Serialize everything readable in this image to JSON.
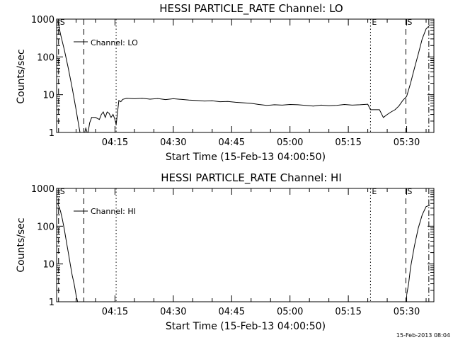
{
  "footer": {
    "timestamp": "15-Feb-2013 08:04"
  },
  "chart_data": [
    {
      "type": "line",
      "title": "HESSI PARTICLE_RATE Channel: LO",
      "xlabel": "Start Time (15-Feb-13 04:00:50)",
      "ylabel": "Counts/sec",
      "yscale": "log",
      "ylim": [
        1,
        1000
      ],
      "xlim_min": [
        0,
        97
      ],
      "x_ticks": [
        {
          "min": 15,
          "label": "04:15"
        },
        {
          "min": 30,
          "label": "04:30"
        },
        {
          "min": 45,
          "label": "04:45"
        },
        {
          "min": 60,
          "label": "05:00"
        },
        {
          "min": 75,
          "label": "05:15"
        },
        {
          "min": 90,
          "label": "05:30"
        }
      ],
      "y_ticks": [
        {
          "v": 1,
          "label": "1"
        },
        {
          "v": 10,
          "label": "10"
        },
        {
          "v": 100,
          "label": "100"
        },
        {
          "v": 1000,
          "label": "1000"
        }
      ],
      "legend": "Channel: LO",
      "markers": [
        {
          "min": 0.5,
          "style": "dashed",
          "label": "S"
        },
        {
          "min": 7,
          "style": "dashed",
          "label": ""
        },
        {
          "min": 15.3,
          "style": "dotted",
          "label": ""
        },
        {
          "min": 80.7,
          "style": "dotted",
          "label": "E"
        },
        {
          "min": 89.8,
          "style": "dashed",
          "label": "S"
        },
        {
          "min": 95.7,
          "style": "dashdot",
          "label": ""
        }
      ],
      "series": [
        {
          "x": [
            0.3,
            1,
            2,
            3,
            4,
            5,
            5.5,
            6,
            6.5,
            7,
            7.5,
            8,
            8.5,
            9,
            10,
            11,
            11.5,
            12,
            12.5,
            13,
            13.5,
            14,
            14.5,
            15,
            15.3,
            16,
            16.5,
            17,
            18,
            20,
            22,
            24,
            26,
            28,
            30,
            32,
            34,
            36,
            38,
            40,
            42,
            44,
            46,
            48,
            50,
            52,
            54,
            56,
            58,
            60,
            62,
            64,
            66,
            68,
            70,
            72,
            74,
            76,
            78,
            80,
            80.7,
            82,
            83,
            84,
            85,
            86,
            87,
            88,
            89,
            90,
            91,
            92,
            93,
            94,
            95,
            96
          ],
          "y": [
            900,
            400,
            150,
            50,
            15,
            4,
            2,
            1,
            1,
            0.8,
            1.3,
            0.9,
            1.8,
            2.5,
            2.5,
            2.2,
            3,
            3.5,
            2.5,
            3.5,
            3.2,
            2.5,
            3,
            2.2,
            1.6,
            7,
            6.5,
            7.5,
            8,
            7.8,
            8,
            7.6,
            7.9,
            7.4,
            7.8,
            7.5,
            7.2,
            7,
            6.8,
            6.9,
            6.5,
            6.6,
            6.3,
            6.1,
            5.9,
            5.5,
            5.2,
            5.4,
            5.3,
            5.5,
            5.4,
            5.2,
            5,
            5.3,
            5.1,
            5.2,
            5.5,
            5.3,
            5.4,
            5.6,
            4,
            4,
            4,
            2.5,
            3,
            3.5,
            4,
            5,
            7,
            9,
            20,
            50,
            120,
            300,
            550,
            700
          ]
        }
      ]
    },
    {
      "type": "line",
      "title": "HESSI PARTICLE_RATE Channel: HI",
      "xlabel": "Start Time (15-Feb-13 04:00:50)",
      "ylabel": "Counts/sec",
      "yscale": "log",
      "ylim": [
        1,
        1000
      ],
      "xlim_min": [
        0,
        97
      ],
      "x_ticks": [
        {
          "min": 15,
          "label": "04:15"
        },
        {
          "min": 30,
          "label": "04:30"
        },
        {
          "min": 45,
          "label": "04:45"
        },
        {
          "min": 60,
          "label": "05:00"
        },
        {
          "min": 75,
          "label": "05:15"
        },
        {
          "min": 90,
          "label": "05:30"
        }
      ],
      "y_ticks": [
        {
          "v": 1,
          "label": "1"
        },
        {
          "v": 10,
          "label": "10"
        },
        {
          "v": 100,
          "label": "100"
        },
        {
          "v": 1000,
          "label": "1000"
        }
      ],
      "legend": "Channel: HI",
      "markers": [
        {
          "min": 0.5,
          "style": "dashed",
          "label": "S"
        },
        {
          "min": 7,
          "style": "dashed",
          "label": ""
        },
        {
          "min": 15.3,
          "style": "dotted",
          "label": ""
        },
        {
          "min": 80.7,
          "style": "dotted",
          "label": "E"
        },
        {
          "min": 89.8,
          "style": "dashed",
          "label": "S"
        },
        {
          "min": 95.7,
          "style": "dashdot",
          "label": ""
        }
      ],
      "series": [
        {
          "segments": [
            {
              "x": [
                0.3,
                1,
                1.5,
                2,
                2.5,
                3,
                3.5,
                4,
                4.5,
                5,
                5.5
              ],
              "y": [
                400,
                250,
                150,
                80,
                40,
                20,
                10,
                5,
                3,
                1.5,
                0.9
              ]
            },
            {
              "x": [
                90,
                90.5,
                91,
                92,
                93,
                94,
                95,
                96
              ],
              "y": [
                1.5,
                3,
                8,
                30,
                90,
                200,
                330,
                360
              ]
            }
          ]
        }
      ]
    }
  ]
}
